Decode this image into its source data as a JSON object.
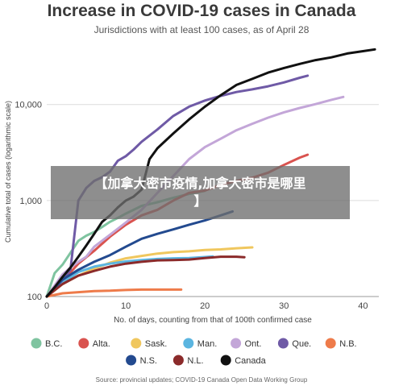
{
  "overlay": {
    "line1": "【加拿大密市疫情,加拿大密市是哪里",
    "line2": "】"
  },
  "chart_data": {
    "type": "line",
    "title": "Increase in COVID-19 cases in Canada",
    "subtitle": "Jurisdictions with at least 100 cases, as of April 28",
    "xlabel": "No. of days, counting from that of 100th confirmed case",
    "ylabel": "Cumulative total of cases (logarithmic scale)",
    "source": "Source: provincial updates; COVID-19 Canada Open Data Working Group",
    "y_scale": "log",
    "xlim": [
      0,
      42
    ],
    "ylim": [
      100,
      40000
    ],
    "x_ticks": [
      0,
      10,
      20,
      30,
      40
    ],
    "y_ticks": [
      100,
      1000,
      10000
    ],
    "y_tick_labels": [
      "100",
      "1,000",
      "10,000"
    ],
    "grid": "horizontal",
    "legend_placement": "bottom",
    "legend_rows": [
      [
        "B.C.",
        "Alta.",
        "Sask.",
        "Man.",
        "Ont.",
        "Que.",
        "N.B."
      ],
      [
        "N.S.",
        "N.L.",
        "Canada"
      ]
    ],
    "series": [
      {
        "name": "B.C.",
        "color": "#7fc4a0",
        "x": [
          0,
          1,
          2,
          3,
          4,
          5,
          6,
          7,
          8,
          9,
          10,
          12,
          14,
          16,
          18,
          20
        ],
        "y": [
          100,
          175,
          215,
          285,
          380,
          430,
          470,
          530,
          600,
          660,
          730,
          880,
          960,
          1070,
          1170,
          1260
        ]
      },
      {
        "name": "Alta.",
        "color": "#d9534f",
        "x": [
          0,
          2,
          4,
          6,
          8,
          10,
          12,
          14,
          16,
          18,
          20,
          22,
          24,
          26,
          28,
          30,
          32,
          33
        ],
        "y": [
          100,
          145,
          220,
          300,
          420,
          560,
          700,
          800,
          1000,
          1200,
          1270,
          1450,
          1600,
          1730,
          1950,
          2350,
          2800,
          3000
        ]
      },
      {
        "name": "Sask.",
        "color": "#f0c75e",
        "x": [
          0,
          2,
          4,
          6,
          8,
          10,
          12,
          14,
          16,
          18,
          20,
          22,
          24,
          26
        ],
        "y": [
          100,
          135,
          165,
          195,
          225,
          250,
          265,
          280,
          290,
          296,
          305,
          310,
          318,
          325
        ]
      },
      {
        "name": "Man.",
        "color": "#5bb5e0",
        "x": [
          0,
          2,
          4,
          6,
          8,
          10,
          12,
          14,
          16,
          18,
          20,
          21
        ],
        "y": [
          100,
          140,
          180,
          205,
          220,
          232,
          240,
          246,
          250,
          252,
          258,
          262
        ]
      },
      {
        "name": "Ont.",
        "color": "#c3a6d8",
        "x": [
          0,
          2,
          3,
          4,
          5,
          6,
          8,
          10,
          12,
          14,
          16,
          18,
          20,
          22,
          24,
          26,
          28,
          30,
          32,
          34,
          36,
          37.5
        ],
        "y": [
          100,
          170,
          200,
          230,
          260,
          330,
          440,
          590,
          800,
          1200,
          1800,
          2700,
          3600,
          4400,
          5400,
          6300,
          7300,
          8300,
          9200,
          10100,
          11200,
          12000
        ]
      },
      {
        "name": "Que.",
        "color": "#6f5aa6",
        "x": [
          0,
          1,
          2,
          3,
          4,
          5,
          6,
          7,
          8,
          9,
          10,
          11,
          12,
          14,
          16,
          18,
          20,
          22,
          24,
          26,
          28,
          30,
          32,
          33
        ],
        "y": [
          100,
          120,
          150,
          190,
          1000,
          1350,
          1600,
          1750,
          2000,
          2600,
          2900,
          3400,
          4100,
          5500,
          7600,
          9500,
          11000,
          12300,
          13500,
          14400,
          15500,
          17000,
          19000,
          20000
        ]
      },
      {
        "name": "N.B.",
        "color": "#ee7b4a",
        "x": [
          0,
          2,
          4,
          6,
          8,
          10,
          12,
          14,
          16,
          17
        ],
        "y": [
          100,
          108,
          111,
          114,
          115,
          117,
          118,
          118,
          118,
          118
        ]
      },
      {
        "name": "N.S.",
        "color": "#234a8f",
        "x": [
          0,
          2,
          4,
          6,
          8,
          10,
          12,
          14,
          16,
          18,
          20,
          22,
          23.5
        ],
        "y": [
          100,
          150,
          190,
          230,
          270,
          330,
          400,
          450,
          500,
          560,
          620,
          700,
          770
        ]
      },
      {
        "name": "N.L.",
        "color": "#8b2a2a",
        "x": [
          0,
          2,
          4,
          6,
          8,
          10,
          12,
          14,
          16,
          18,
          20,
          22,
          24,
          25
        ],
        "y": [
          100,
          135,
          165,
          185,
          205,
          220,
          230,
          238,
          240,
          243,
          252,
          260,
          260,
          257
        ]
      },
      {
        "name": "Canada",
        "color": "#111111",
        "x": [
          0,
          1,
          2,
          3,
          4,
          5,
          6,
          7,
          8,
          9,
          10,
          11,
          12,
          13,
          14,
          16,
          18,
          20,
          22,
          24,
          26,
          28,
          30,
          32,
          34,
          36,
          38,
          40,
          41.5
        ],
        "y": [
          100,
          125,
          160,
          200,
          260,
          340,
          450,
          600,
          700,
          850,
          1000,
          1100,
          1300,
          2700,
          3500,
          5000,
          7000,
          9500,
          12500,
          16000,
          18500,
          21500,
          24000,
          26500,
          29000,
          31000,
          34000,
          36000,
          37500
        ]
      }
    ]
  }
}
